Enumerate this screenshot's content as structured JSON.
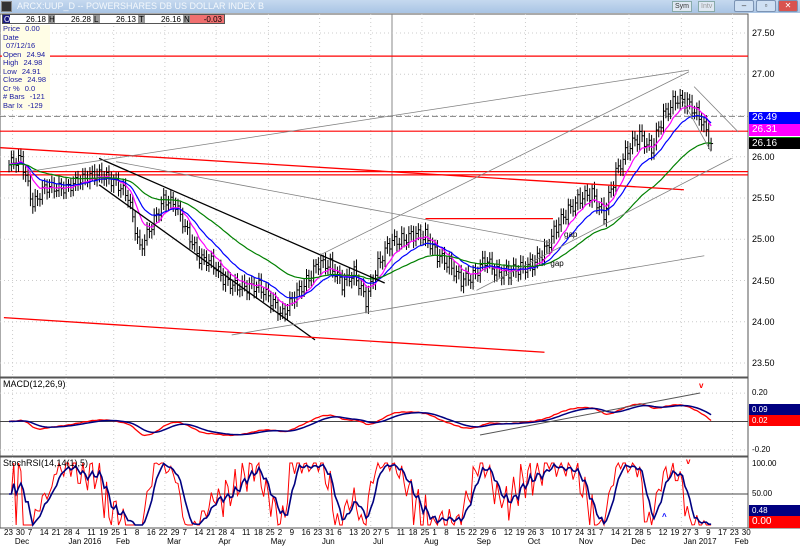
{
  "window": {
    "title": "ARCX:UUP_D -- POWERSHARES DB US DOLLAR INDEX B",
    "sym_button": "Sym",
    "intv_button": "Intv",
    "minimize": "–",
    "maximize": "▫",
    "close": "✕"
  },
  "quote": {
    "O": "26.18",
    "H": "26.28",
    "L": "26.13",
    "T": "26.16",
    "N": "-0.03"
  },
  "info": [
    {
      "k": "Price",
      "v": "0.00"
    },
    {
      "k": "Date",
      "v": "07/12/16"
    },
    {
      "k": "Open",
      "v": "24.94"
    },
    {
      "k": "High",
      "v": "24.98"
    },
    {
      "k": "Low",
      "v": "24.91"
    },
    {
      "k": "Close",
      "v": "24.98"
    },
    {
      "k": "Cr %",
      "v": "0.0"
    },
    {
      "k": "# Bars",
      "v": "-121"
    },
    {
      "k": "Bar Ix",
      "v": "-129"
    }
  ],
  "colors": {
    "price": "#000000",
    "ma_short": "#ff00ff",
    "ma_mid": "#0000ff",
    "ma_long": "#008000",
    "resistance": "#ff0000",
    "trend": "#000000",
    "fan": "#808080",
    "macd": "#ff0000",
    "signal": "#000080"
  },
  "chart_data": [
    {
      "type": "line",
      "name_panel": "price",
      "ylim": [
        23.3,
        27.7
      ],
      "yticks": [
        "27.50",
        "27.00",
        "26.50",
        "26.00",
        "25.50",
        "25.00",
        "24.50",
        "24.00",
        "23.50"
      ],
      "last_labels": [
        {
          "value": "26.49",
          "color": "#0000ff"
        },
        {
          "value": "26.31",
          "color": "#ff00ff"
        },
        {
          "value": "26.16",
          "color": "#000000"
        }
      ],
      "weekly_close": {
        "start": "2015-11-23",
        "values": [
          25.9,
          26.0,
          25.4,
          25.65,
          25.6,
          25.65,
          25.7,
          25.8,
          25.75,
          25.7,
          25.5,
          24.9,
          25.15,
          25.5,
          25.4,
          25.1,
          24.75,
          24.75,
          24.5,
          24.45,
          24.4,
          24.45,
          24.25,
          24.1,
          24.3,
          24.5,
          24.7,
          24.7,
          24.45,
          24.6,
          24.25,
          24.7,
          24.95,
          25.0,
          25.05,
          25.05,
          24.8,
          24.7,
          24.5,
          24.55,
          24.75,
          24.6,
          24.6,
          24.65,
          24.7,
          24.85,
          25.15,
          25.35,
          25.5,
          25.55,
          25.3,
          25.8,
          26.1,
          26.25,
          26.1,
          26.5,
          26.7,
          26.65,
          26.5,
          26.16
        ]
      },
      "hlines": [
        {
          "price": 27.22,
          "color": "#ff0000"
        },
        {
          "price": 26.49,
          "color": "#808080",
          "dash": true
        },
        {
          "price": 26.31,
          "color": "#ff0000"
        },
        {
          "price": 25.82,
          "color": "#ff0000"
        },
        {
          "price": 25.78,
          "color": "#ff0000"
        }
      ],
      "trendlines": [
        {
          "from": [
            "2016-01-15",
            25.66
          ],
          "to": [
            "2016-05-21",
            23.78
          ],
          "color": "#000000"
        },
        {
          "from": [
            "2016-01-15",
            25.98
          ],
          "to": [
            "2016-07-01",
            24.47
          ],
          "color": "#000000"
        },
        {
          "from": [
            "2015-11-18",
            26.11
          ],
          "to": [
            "2016-12-24",
            25.6
          ],
          "color": "#ff0000"
        },
        {
          "from": [
            "2015-11-20",
            24.05
          ],
          "to": [
            "2016-10-03",
            23.63
          ],
          "color": "#ff0000"
        },
        {
          "from": [
            "2016-07-25",
            25.25
          ],
          "to": [
            "2016-10-08",
            25.25
          ],
          "color": "#ff0000"
        },
        {
          "from": [
            "2015-12-04",
            25.82
          ],
          "to": [
            "2016-12-27",
            27.05
          ],
          "color": "#808080"
        },
        {
          "from": [
            "2016-04-02",
            23.84
          ],
          "to": [
            "2017-01-05",
            24.8
          ],
          "color": "#808080"
        },
        {
          "from": [
            "2016-05-24",
            24.81
          ],
          "to": [
            "2016-12-27",
            27.03
          ],
          "color": "#808080"
        },
        {
          "from": [
            "2016-08-24",
            24.38
          ],
          "to": [
            "2017-01-21",
            25.98
          ],
          "color": "#808080"
        },
        {
          "from": [
            "2016-01-25",
            25.94
          ],
          "to": [
            "2016-10-08",
            24.95
          ],
          "color": "#808080"
        },
        {
          "from": [
            "2016-12-30",
            26.85
          ],
          "to": [
            "2017-01-25",
            26.3
          ],
          "color": "#808080"
        },
        {
          "from": [
            "2016-12-22",
            26.73
          ],
          "to": [
            "2017-01-09",
            26.06
          ],
          "color": "#808080"
        }
      ],
      "annotations": [
        {
          "text": "gap",
          "date": "2016-10-18",
          "price": 25.05
        },
        {
          "text": "gap",
          "date": "2016-10-10",
          "price": 24.7
        }
      ]
    },
    {
      "type": "line",
      "title": "MACD(12,26,9)",
      "yticks": [
        "0.20",
        "-0.20"
      ],
      "last_labels": [
        {
          "value": "0.09",
          "color": "#000080"
        },
        {
          "value": "0.02",
          "color": "#ff0000"
        }
      ],
      "annotations": [
        {
          "text": "v",
          "color": "#ff0000"
        }
      ]
    },
    {
      "type": "line",
      "title": "StochRSI(14,14(1),5)",
      "yticks": [
        "100.00",
        "50.00"
      ],
      "last_labels": [
        {
          "value": "0.48",
          "color": "#000080"
        },
        {
          "value": "0.00",
          "color": "#ff0000"
        }
      ],
      "annotations": [
        {
          "text": "v",
          "color": "#ff0000"
        },
        {
          "text": "^",
          "color": "#0000ff"
        }
      ]
    }
  ],
  "xaxis": {
    "days": [
      "23",
      "30",
      "7",
      "14",
      "21",
      "28",
      "4",
      "11",
      "19",
      "25",
      "1",
      "8",
      "16",
      "22",
      "29",
      "7",
      "14",
      "21",
      "28",
      "4",
      "11",
      "18",
      "25",
      "2",
      "9",
      "16",
      "23",
      "31",
      "6",
      "13",
      "20",
      "27",
      "5",
      "11",
      "18",
      "25",
      "1",
      "8",
      "15",
      "22",
      "29",
      "6",
      "12",
      "19",
      "26",
      "3",
      "10",
      "17",
      "24",
      "31",
      "7",
      "14",
      "21",
      "28",
      "5",
      "12",
      "19",
      "27",
      "3",
      "9",
      "17",
      "23",
      "30"
    ],
    "months": [
      {
        "label": "Dec",
        "week": 1.5
      },
      {
        "label": "Jan 2016",
        "week": 6
      },
      {
        "label": "Feb",
        "week": 10
      },
      {
        "label": "Mar",
        "week": 14.3
      },
      {
        "label": "Apr",
        "week": 18.6
      },
      {
        "label": "May",
        "week": 23
      },
      {
        "label": "Jun",
        "week": 27.3
      },
      {
        "label": "Jul",
        "week": 31.6
      },
      {
        "label": "Aug",
        "week": 35.9
      },
      {
        "label": "Sep",
        "week": 40.3
      },
      {
        "label": "Oct",
        "week": 44.6
      },
      {
        "label": "Nov",
        "week": 48.9
      },
      {
        "label": "Dec",
        "week": 53.3
      },
      {
        "label": "Jan 2017",
        "week": 57.7
      },
      {
        "label": "Feb",
        "week": 62
      }
    ]
  }
}
